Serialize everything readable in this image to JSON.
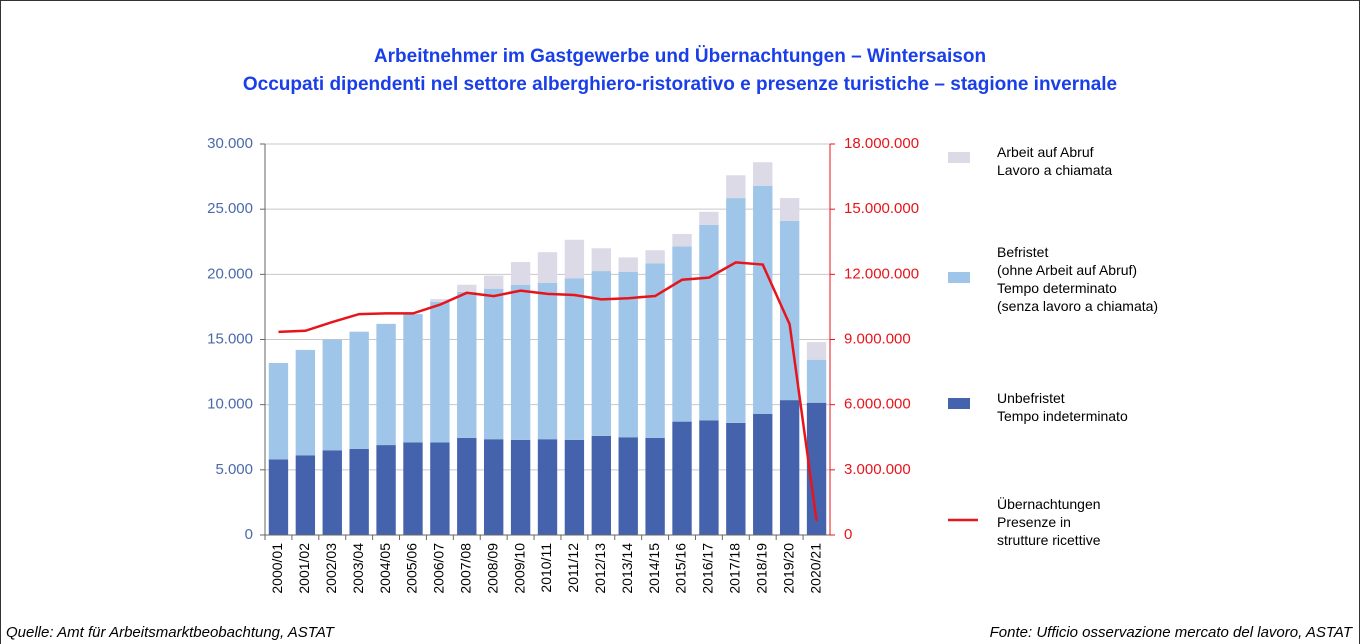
{
  "chart_data": {
    "type": "bar",
    "stacked": true,
    "title": "Arbeitnehmer im Gastgewerbe und Übernachtungen – Wintersaison",
    "subtitle": "Occupati dipendenti nel settore alberghiero-ristorativo e presenze turistiche – stagione invernale",
    "source": [
      "Quelle: Amt für Arbeitsmarktbeobachtung, ASTAT",
      "Fonte: Ufficio osservazione mercato del lavoro, ASTAT"
    ],
    "categories": [
      "2000/01",
      "2001/02",
      "2002/03",
      "2003/04",
      "2004/05",
      "2005/06",
      "2006/07",
      "2007/08",
      "2008/09",
      "2009/10",
      "2010/11",
      "2011/12",
      "2012/13",
      "2013/14",
      "2014/15",
      "2015/16",
      "2016/17",
      "2017/18",
      "2018/19",
      "2019/20",
      "2020/21"
    ],
    "series": [
      {
        "name": "Unbefristet\nTempo indeterminato",
        "color": "#4563ac",
        "values": [
          5800,
          6100,
          6500,
          6600,
          6900,
          7100,
          7100,
          7450,
          7350,
          7300,
          7350,
          7300,
          7600,
          7500,
          7450,
          8700,
          8800,
          8600,
          9300,
          10350,
          10150
        ]
      },
      {
        "name": "Befristet\n(ohne Arbeit auf Abruf)\nTempo determinato\n(senza lavoro a chiamata)",
        "color": "#9fc5e8",
        "values": [
          7400,
          8100,
          8500,
          9000,
          9300,
          9850,
          10800,
          11200,
          11550,
          11900,
          12000,
          12400,
          12650,
          12700,
          13400,
          13450,
          15000,
          17250,
          17500,
          13750,
          3300
        ]
      },
      {
        "name": "Arbeit auf Abruf\nLavoro a chiamata",
        "color": "#dcdae6",
        "values": [
          0,
          0,
          0,
          0,
          0,
          0,
          200,
          550,
          1000,
          1750,
          2350,
          2950,
          1750,
          1100,
          1000,
          950,
          1000,
          1750,
          1800,
          1750,
          1350
        ]
      },
      {
        "name": "Übernachtungen\nPresenze in\nstrutture ricettive",
        "color": "#e8141b",
        "type": "line",
        "axis": "y2",
        "values": [
          9350000,
          9400000,
          9800000,
          10170000,
          10200000,
          10200000,
          10600000,
          11150000,
          11000000,
          11250000,
          11100000,
          11050000,
          10850000,
          10900000,
          11000000,
          11750000,
          11850000,
          12550000,
          12450000,
          9700000,
          650000
        ]
      }
    ],
    "ylim": [
      0,
      30000
    ],
    "yticks": [
      0,
      {
        "value": 5000,
        "label": "5.000"
      },
      {
        "value": 10000,
        "label": "10.000"
      },
      {
        "value": 15000,
        "label": "15.000"
      },
      {
        "value": 20000,
        "label": "20.000"
      },
      {
        "value": 25000,
        "label": "25.000"
      },
      {
        "value": 30000,
        "label": "30.000"
      }
    ],
    "y2lim": [
      0,
      18000000
    ],
    "y2ticks": [
      0,
      {
        "value": 3000000,
        "label": "3.000.000"
      },
      {
        "value": 6000000,
        "label": "6.000.000"
      },
      {
        "value": 9000000,
        "label": "9.000.000"
      },
      {
        "value": 12000000,
        "label": "12.000.000"
      },
      {
        "value": 15000000,
        "label": "15.000.000"
      },
      {
        "value": 18000000,
        "label": "18.000.000"
      }
    ],
    "grid": true,
    "legend": "right"
  }
}
